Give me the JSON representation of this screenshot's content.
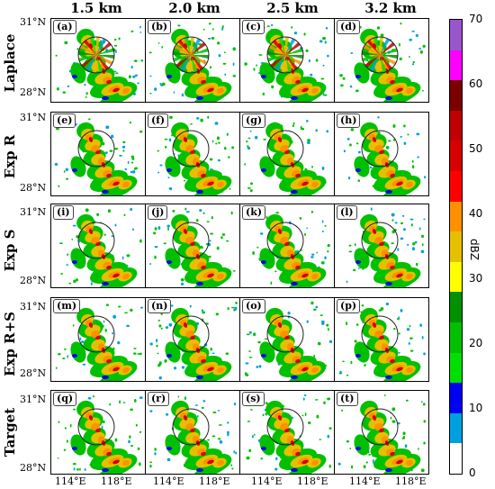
{
  "column_headers": [
    "1.5 km",
    "2.0 km",
    "2.5 km",
    "3.2 km"
  ],
  "row_labels": [
    "Laplace",
    "Exp R",
    "Exp S",
    "Exp R+S",
    "Target"
  ],
  "panel_labels": [
    [
      "(a)",
      "(b)",
      "(c)",
      "(d)"
    ],
    [
      "(e)",
      "(f)",
      "(g)",
      "(h)"
    ],
    [
      "(i)",
      "(j)",
      "(k)",
      "(l)"
    ],
    [
      "(m)",
      "(n)",
      "(o)",
      "(p)"
    ],
    [
      "(q)",
      "(r)",
      "(s)",
      "(t)"
    ]
  ],
  "lat_labels": {
    "north": "31°N",
    "south": "28°N"
  },
  "lon_labels": {
    "west": "114°E",
    "east": "118°E"
  },
  "colorbar": {
    "title": "dBZ",
    "ticks": [
      "70",
      "60",
      "50",
      "40",
      "30",
      "20",
      "10",
      "0"
    ],
    "colors": [
      "#ffffff",
      "#00a0e0",
      "#0000f0",
      "#00e000",
      "#00c000",
      "#009000",
      "#ffff00",
      "#e6c000",
      "#ff9000",
      "#ff0000",
      "#d60000",
      "#c00000",
      "#7a0000",
      "#ff00ff",
      "#9955cc"
    ]
  }
}
